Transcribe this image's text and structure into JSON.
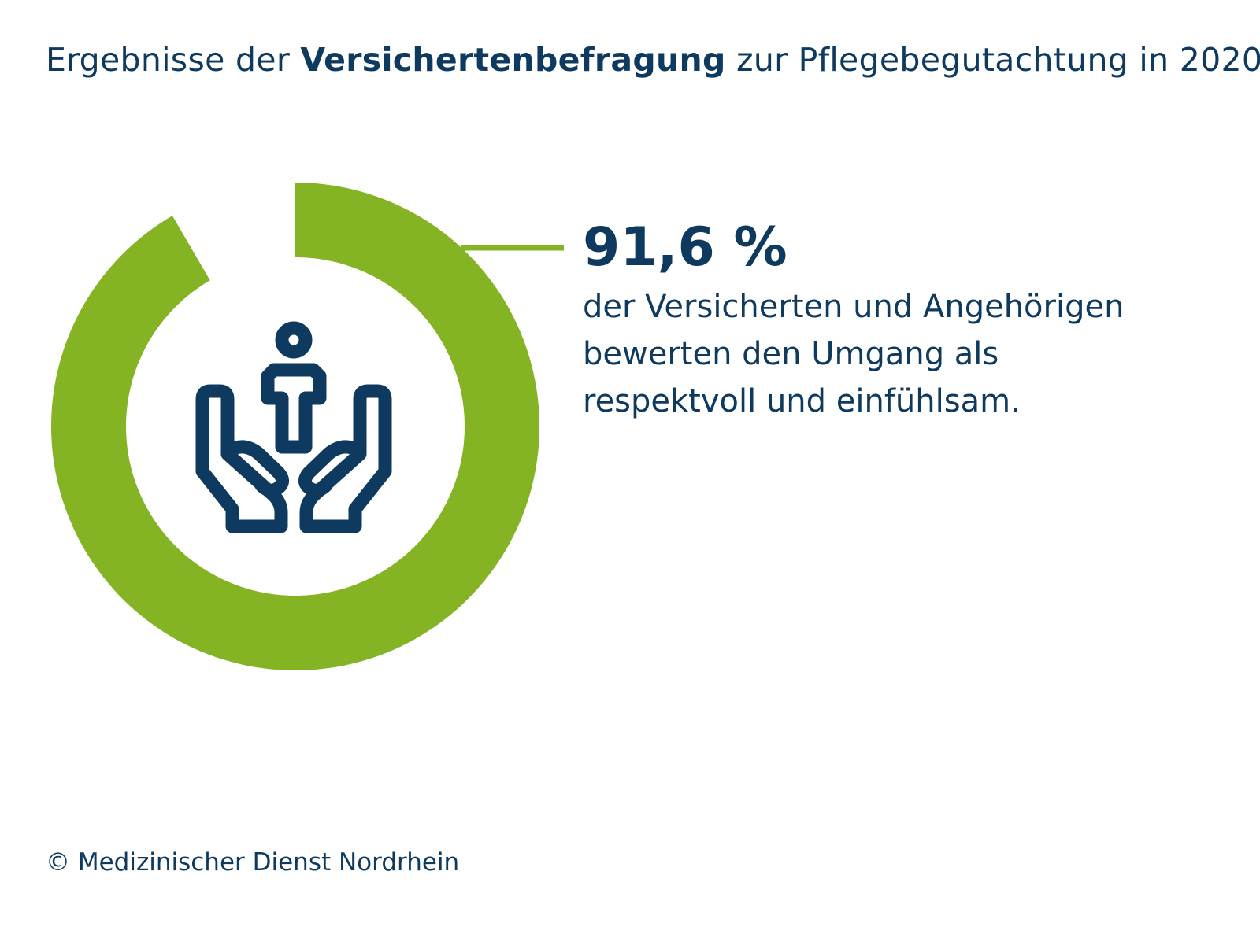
{
  "title": {
    "prefix": "Ergebnisse der",
    "bold": "Versichertenbefragung",
    "suffix": "zur Pflegebegutachtung in 2020"
  },
  "chart_data": {
    "type": "pie",
    "title": "Ergebnisse der Versichertenbefragung zur Pflegebegutachtung in 2020",
    "values": [
      91.6,
      8.4
    ],
    "highlight_label": "91,6 %",
    "description": [
      "der Versicherten und Angehörigen",
      "bewerten den Umgang als",
      "respektvoll und einfühlsam."
    ],
    "colors": {
      "ring": "#84b424",
      "text": "#0f3a5f"
    }
  },
  "icon": "caring-hands-person-icon",
  "footer": {
    "copyright": "© Medizinischer Dienst Nordrhein"
  }
}
